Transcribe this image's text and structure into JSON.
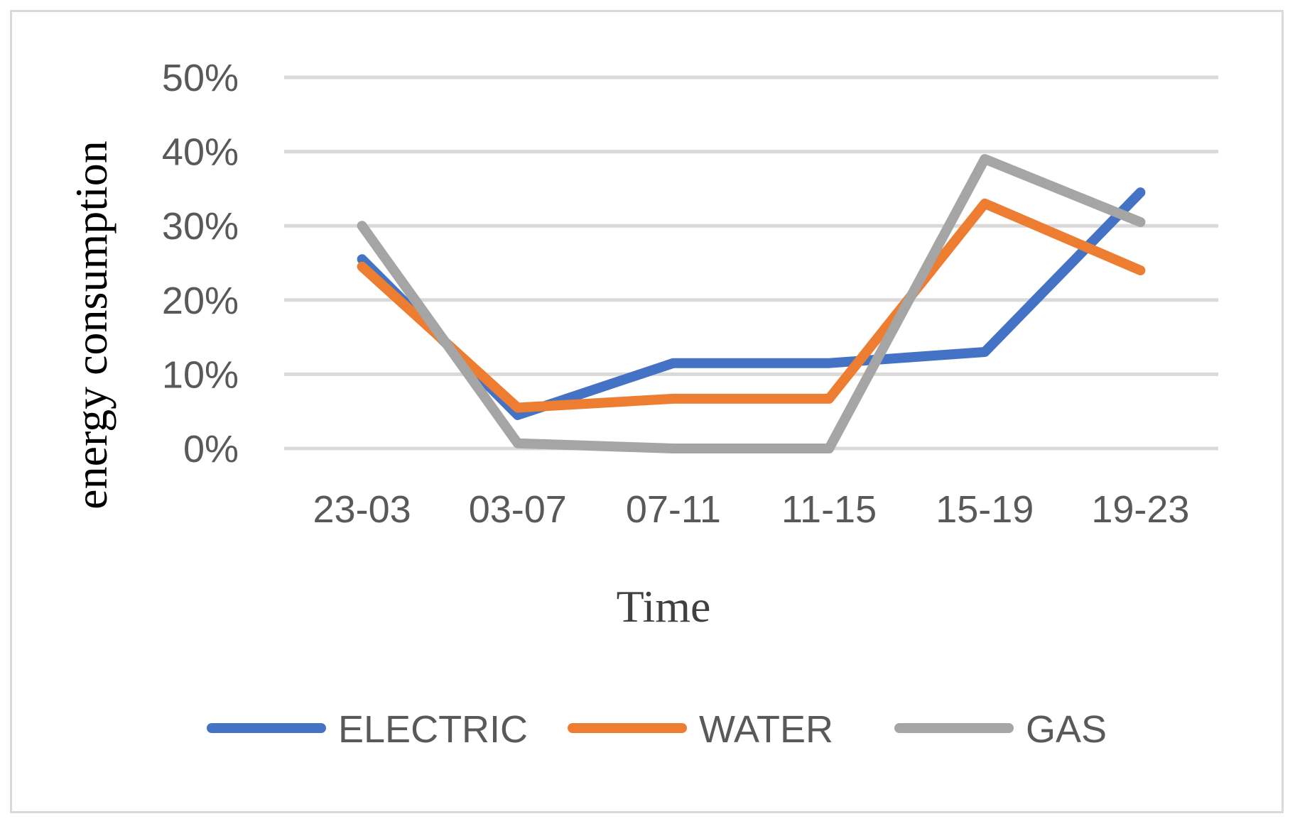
{
  "chart_data": {
    "type": "line",
    "categories": [
      "23-03",
      "03-07",
      "07-11",
      "11-15",
      "15-19",
      "19-23"
    ],
    "series": [
      {
        "name": "ELECTRIC",
        "color": "#4472c4",
        "values": [
          0.255,
          0.045,
          0.115,
          0.115,
          0.13,
          0.345
        ]
      },
      {
        "name": "WATER",
        "color": "#ed7d31",
        "values": [
          0.245,
          0.055,
          0.067,
          0.067,
          0.33,
          0.24
        ]
      },
      {
        "name": "GAS",
        "color": "#a5a5a5",
        "values": [
          0.3,
          0.007,
          0.0,
          0.0,
          0.39,
          0.305
        ]
      }
    ],
    "yticks": [
      "0%",
      "10%",
      "20%",
      "30%",
      "40%",
      "50%"
    ],
    "ylim": [
      0,
      0.5
    ],
    "xlabel": "Time",
    "ylabel": "energy consumption",
    "grid": true,
    "legend_position": "bottom"
  }
}
